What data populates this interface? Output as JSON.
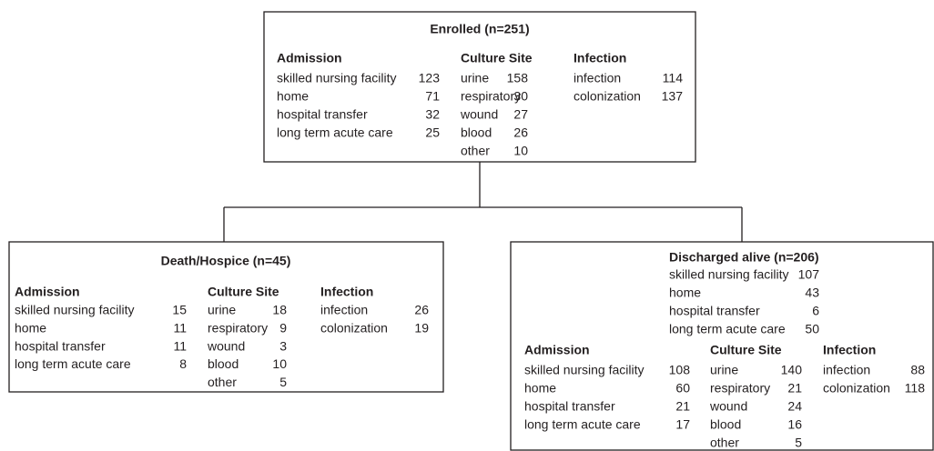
{
  "nodes": [
    {
      "title": "Enrolled (n=251)",
      "sections": [
        {
          "heading": "Admission",
          "rows": [
            [
              "skilled nursing facility",
              123
            ],
            [
              "home",
              71
            ],
            [
              "hospital transfer",
              32
            ],
            [
              "long term acute care",
              25
            ]
          ]
        },
        {
          "heading": "Culture Site",
          "rows": [
            [
              "urine",
              158
            ],
            [
              "respiratory",
              30
            ],
            [
              "wound",
              27
            ],
            [
              "blood",
              26
            ],
            [
              "other",
              10
            ]
          ]
        },
        {
          "heading": "Infection",
          "rows": [
            [
              "infection",
              114
            ],
            [
              "colonization",
              137
            ]
          ]
        }
      ]
    },
    {
      "title": "Death/Hospice (n=45)",
      "sections": [
        {
          "heading": "Admission",
          "rows": [
            [
              "skilled nursing facility",
              15
            ],
            [
              "home",
              11
            ],
            [
              "hospital transfer",
              11
            ],
            [
              "long term acute care",
              8
            ]
          ]
        },
        {
          "heading": "Culture Site",
          "rows": [
            [
              "urine",
              18
            ],
            [
              "respiratory",
              9
            ],
            [
              "wound",
              3
            ],
            [
              "blood",
              10
            ],
            [
              "other",
              5
            ]
          ]
        },
        {
          "heading": "Infection",
          "rows": [
            [
              "infection",
              26
            ],
            [
              "colonization",
              19
            ]
          ]
        }
      ]
    },
    {
      "title": "Discharged alive (n=206)",
      "summary_rows": [
        [
          "skilled nursing facility",
          107
        ],
        [
          "home",
          43
        ],
        [
          "hospital transfer",
          6
        ],
        [
          "long term acute care",
          50
        ]
      ],
      "sections": [
        {
          "heading": "Admission",
          "rows": [
            [
              "skilled nursing facility",
              108
            ],
            [
              "home",
              60
            ],
            [
              "hospital transfer",
              21
            ],
            [
              "long term acute care",
              17
            ]
          ]
        },
        {
          "heading": "Culture Site",
          "rows": [
            [
              "urine",
              140
            ],
            [
              "respiratory",
              21
            ],
            [
              "wound",
              24
            ],
            [
              "blood",
              16
            ],
            [
              "other",
              5
            ]
          ]
        },
        {
          "heading": "Infection",
          "rows": [
            [
              "infection",
              88
            ],
            [
              "colonization",
              118
            ]
          ]
        }
      ]
    }
  ]
}
